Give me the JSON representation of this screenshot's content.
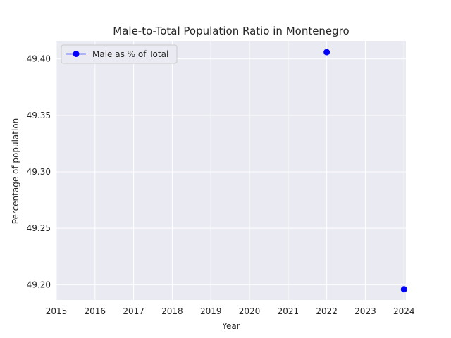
{
  "chart_data": {
    "type": "line",
    "title": "Male-to-Total Population Ratio in Montenegro",
    "xlabel": "Year",
    "ylabel": "Percentage of population",
    "xlim": [
      2015,
      2024.05
    ],
    "ylim": [
      49.1865,
      49.416
    ],
    "x_ticks": [
      "2015",
      "2016",
      "2017",
      "2018",
      "2019",
      "2020",
      "2021",
      "2022",
      "2023",
      "2024"
    ],
    "y_ticks": [
      "49.20",
      "49.25",
      "49.30",
      "49.35",
      "49.40"
    ],
    "grid": true,
    "legend_position": "top-left",
    "series": [
      {
        "name": "Male as % of Total",
        "color": "#0000ff",
        "marker": "circle",
        "points": [
          {
            "x": 2022,
            "y": 49.406
          },
          {
            "x": 2024,
            "y": 49.196
          }
        ]
      }
    ]
  }
}
